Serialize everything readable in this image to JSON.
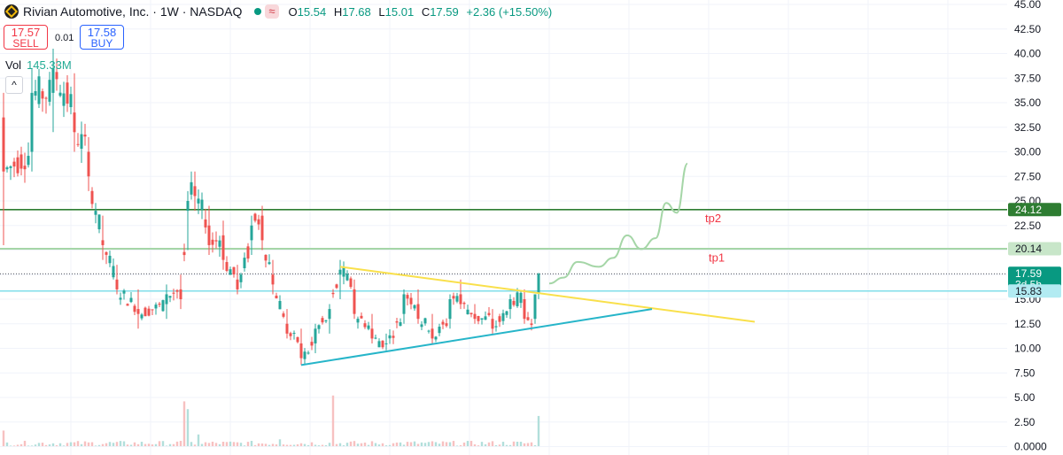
{
  "header": {
    "title": "Rivian Automotive, Inc. · 1W · NASDAQ",
    "wave_icon": "≈",
    "open_label": "O",
    "open": "15.54",
    "high_label": "H",
    "high": "17.68",
    "low_label": "L",
    "low": "15.01",
    "close_label": "C",
    "close": "17.59",
    "change": "+2.36 (+15.50%)"
  },
  "trade": {
    "sell_price": "17.57",
    "sell_label": "SELL",
    "spread": "0.01",
    "buy_price": "17.58",
    "buy_label": "BUY"
  },
  "volume": {
    "label": "Vol",
    "value": "145.33M"
  },
  "collapse_icon": "^",
  "colors": {
    "up": "#26a69a",
    "down": "#ef5350",
    "tp2": "#2e7d32",
    "tp1": "#a5d6a7",
    "support": "#80deea",
    "trend_top": "#f9e04b",
    "trend_bottom": "#26b5c9",
    "projection": "#a5d6a7"
  },
  "chart_data": {
    "type": "candlestick",
    "y_axis_ticks": [
      "45.00",
      "42.50",
      "40.00",
      "37.50",
      "35.00",
      "32.50",
      "30.00",
      "27.50",
      "25.00",
      "22.50",
      "20.00",
      "17.50",
      "15.00",
      "12.50",
      "10.00",
      "7.50",
      "5.00",
      "2.50",
      "0.0000"
    ],
    "ylim": [
      0,
      45
    ],
    "ohlc_keypoints": [
      {
        "i": 0,
        "o": 33.5,
        "h": 36.0,
        "l": 20.5,
        "c": 28.0
      },
      {
        "i": 8,
        "o": 30.0,
        "h": 38.5,
        "l": 28.0,
        "c": 36.0
      },
      {
        "i": 14,
        "o": 36.0,
        "h": 40.5,
        "l": 32.0,
        "c": 38.5
      },
      {
        "i": 20,
        "o": 34.0,
        "h": 38.0,
        "l": 30.0,
        "c": 32.0
      },
      {
        "i": 24,
        "o": 30.0,
        "h": 31.5,
        "l": 26.0,
        "c": 27.5
      },
      {
        "i": 28,
        "o": 21.0,
        "h": 23.5,
        "l": 19.0,
        "c": 20.5
      },
      {
        "i": 32,
        "o": 17.0,
        "h": 18.5,
        "l": 15.5,
        "c": 16.0
      },
      {
        "i": 38,
        "o": 14.0,
        "h": 16.0,
        "l": 12.0,
        "c": 13.5
      },
      {
        "i": 46,
        "o": 14.5,
        "h": 16.5,
        "l": 13.0,
        "c": 15.5
      },
      {
        "i": 50,
        "o": 16.0,
        "h": 17.5,
        "l": 14.0,
        "c": 15.0
      },
      {
        "i": 52,
        "o": 24.0,
        "h": 26.0,
        "l": 20.0,
        "c": 25.0
      },
      {
        "i": 54,
        "o": 26.5,
        "h": 28.0,
        "l": 24.0,
        "c": 25.5
      },
      {
        "i": 58,
        "o": 22.5,
        "h": 24.5,
        "l": 19.5,
        "c": 20.5
      },
      {
        "i": 62,
        "o": 21.5,
        "h": 23.0,
        "l": 18.0,
        "c": 19.0
      },
      {
        "i": 66,
        "o": 17.0,
        "h": 18.5,
        "l": 15.5,
        "c": 16.0
      },
      {
        "i": 70,
        "o": 21.0,
        "h": 23.5,
        "l": 19.5,
        "c": 22.5
      },
      {
        "i": 73,
        "o": 23.5,
        "h": 24.5,
        "l": 20.0,
        "c": 21.0
      },
      {
        "i": 76,
        "o": 17.5,
        "h": 19.0,
        "l": 15.5,
        "c": 16.5
      },
      {
        "i": 80,
        "o": 12.5,
        "h": 14.0,
        "l": 11.0,
        "c": 11.5
      },
      {
        "i": 84,
        "o": 10.5,
        "h": 12.0,
        "l": 8.3,
        "c": 9.0
      },
      {
        "i": 88,
        "o": 10.5,
        "h": 12.5,
        "l": 9.5,
        "c": 12.0
      },
      {
        "i": 92,
        "o": 13.0,
        "h": 14.5,
        "l": 11.5,
        "c": 14.0
      },
      {
        "i": 95,
        "o": 17.5,
        "h": 19.0,
        "l": 15.0,
        "c": 18.0
      },
      {
        "i": 99,
        "o": 16.0,
        "h": 17.0,
        "l": 13.0,
        "c": 13.5
      },
      {
        "i": 104,
        "o": 12.0,
        "h": 13.5,
        "l": 10.5,
        "c": 11.0
      },
      {
        "i": 108,
        "o": 10.5,
        "h": 11.5,
        "l": 9.8,
        "c": 10.5
      },
      {
        "i": 113,
        "o": 13.5,
        "h": 16.0,
        "l": 12.5,
        "c": 15.5
      },
      {
        "i": 117,
        "o": 14.5,
        "h": 16.0,
        "l": 12.5,
        "c": 13.0
      },
      {
        "i": 121,
        "o": 12.0,
        "h": 13.5,
        "l": 10.5,
        "c": 11.0
      },
      {
        "i": 126,
        "o": 13.0,
        "h": 15.5,
        "l": 12.0,
        "c": 15.0
      },
      {
        "i": 129,
        "o": 15.5,
        "h": 17.0,
        "l": 14.0,
        "c": 14.5
      },
      {
        "i": 133,
        "o": 13.5,
        "h": 14.5,
        "l": 12.5,
        "c": 13.0
      },
      {
        "i": 138,
        "o": 13.0,
        "h": 14.0,
        "l": 11.5,
        "c": 12.0
      },
      {
        "i": 143,
        "o": 14.0,
        "h": 15.5,
        "l": 13.0,
        "c": 15.0
      },
      {
        "i": 147,
        "o": 15.0,
        "h": 16.0,
        "l": 12.5,
        "c": 13.0
      },
      {
        "i": 150,
        "o": 13.0,
        "h": 15.5,
        "l": 12.5,
        "c": 15.5
      },
      {
        "i": 151,
        "o": 15.54,
        "h": 17.68,
        "l": 15.01,
        "c": 17.59
      }
    ],
    "bar_count": 152,
    "volume_spikes": [
      {
        "i": 0,
        "v": 1.6
      },
      {
        "i": 51,
        "v": 4.6
      },
      {
        "i": 52,
        "v": 3.8
      },
      {
        "i": 55,
        "v": 1.2
      },
      {
        "i": 93,
        "v": 5.2
      },
      {
        "i": 78,
        "v": 0.7
      },
      {
        "i": 110,
        "v": 0.3
      },
      {
        "i": 151,
        "v": 3.1
      }
    ],
    "horizontal_lines": [
      {
        "name": "tp2",
        "price": 24.12,
        "color": "#2e7d32",
        "label": "24.12"
      },
      {
        "name": "tp1",
        "price": 20.14,
        "color": "#a5d6a7",
        "label": "20.14"
      },
      {
        "name": "last",
        "price": 17.59,
        "color": "#089981",
        "label": "17.59",
        "sublabel": "3d 5h",
        "dotted": true
      },
      {
        "name": "support",
        "price": 15.83,
        "color": "#80deea",
        "label": "15.83"
      }
    ],
    "annotations": [
      {
        "text": "tp2",
        "price": 23.2,
        "bar": 198
      },
      {
        "text": "tp1",
        "price": 19.2,
        "bar": 199
      }
    ],
    "trendlines": [
      {
        "name": "upper-trendline",
        "from": {
          "bar": 95,
          "price": 18.3
        },
        "to": {
          "bar": 212,
          "price": 12.7
        },
        "color": "#f9e04b"
      },
      {
        "name": "lower-trendline",
        "from": {
          "bar": 84,
          "price": 8.3
        },
        "to": {
          "bar": 183,
          "price": 14.0
        },
        "color": "#26b5c9"
      }
    ],
    "projection": [
      {
        "bar": 154,
        "price": 16.6
      },
      {
        "bar": 158,
        "price": 17.2
      },
      {
        "bar": 162,
        "price": 18.8
      },
      {
        "bar": 168,
        "price": 18.3
      },
      {
        "bar": 172,
        "price": 19.2
      },
      {
        "bar": 176,
        "price": 21.5
      },
      {
        "bar": 180,
        "price": 20.1
      },
      {
        "bar": 184,
        "price": 21.2
      },
      {
        "bar": 187,
        "price": 24.8
      },
      {
        "bar": 190,
        "price": 23.8
      },
      {
        "bar": 193,
        "price": 28.8
      }
    ]
  }
}
